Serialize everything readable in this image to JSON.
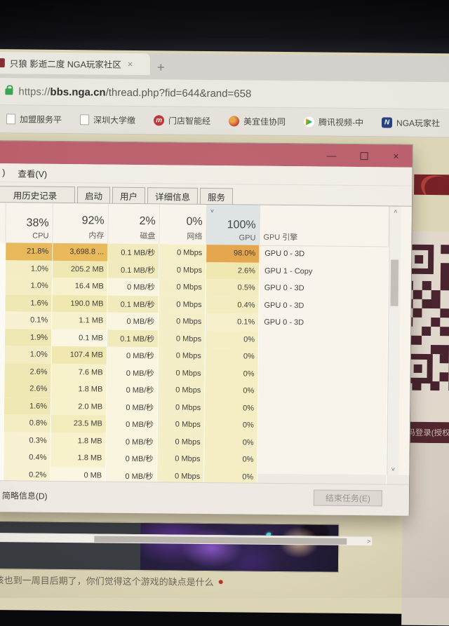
{
  "browser": {
    "tab": {
      "title": "只狼 影逝二度 NGA玩家社区",
      "close_glyph": "×",
      "new_tab_glyph": "+"
    },
    "url": {
      "scheme": "https://",
      "host": "bbs.nga.cn",
      "path": "/thread.php?fid=644&rand=658"
    },
    "bookmarks": [
      {
        "label": "加盟服务平",
        "icon": "page-icon"
      },
      {
        "label": "深圳大学缴",
        "icon": "page-icon"
      },
      {
        "label": "门店智能经",
        "icon": "m-red-icon",
        "icon_glyph": "m"
      },
      {
        "label": "美宜佳协同",
        "icon": "red-circle-icon"
      },
      {
        "label": "腾讯视频-中",
        "icon": "tencent-video-icon"
      },
      {
        "label": "NGA玩家社",
        "icon": "nga-icon",
        "icon_glyph": "N"
      }
    ]
  },
  "task_manager": {
    "window_controls": {
      "minimize": "—",
      "close": "×"
    },
    "menu": {
      "cut_item": ")",
      "view": "查看(V)"
    },
    "tabs": [
      "用历史记录",
      "启动",
      "用户",
      "详细信息",
      "服务"
    ],
    "columns": [
      {
        "percent": "38%",
        "label": "CPU"
      },
      {
        "percent": "92%",
        "label": "内存"
      },
      {
        "percent": "2%",
        "label": "磁盘"
      },
      {
        "percent": "0%",
        "label": "网络"
      },
      {
        "percent": "100%",
        "label": "GPU",
        "sorted": true,
        "sort_glyph": "˅"
      },
      {
        "percent": "",
        "label": "GPU 引擎"
      }
    ],
    "rows": [
      {
        "cpu": "21.8%",
        "mem": "3,698.8 ...",
        "disk": "0.1 MB/秒",
        "net": "0 Mbps",
        "gpu": "98.0%",
        "engine": "GPU 0 - 3D",
        "selected": true
      },
      {
        "cpu": "1.0%",
        "mem": "205.2 MB",
        "disk": "0.1 MB/秒",
        "net": "0 Mbps",
        "gpu": "2.6%",
        "engine": "GPU 1 - Copy"
      },
      {
        "cpu": "1.0%",
        "mem": "16.4 MB",
        "disk": "0 MB/秒",
        "net": "0 Mbps",
        "gpu": "0.5%",
        "engine": "GPU 0 - 3D"
      },
      {
        "cpu": "1.6%",
        "mem": "190.0 MB",
        "disk": "0.1 MB/秒",
        "net": "0 Mbps",
        "gpu": "0.4%",
        "engine": "GPU 0 - 3D"
      },
      {
        "cpu": "0.1%",
        "mem": "1.1 MB",
        "disk": "0 MB/秒",
        "net": "0 Mbps",
        "gpu": "0.1%",
        "engine": "GPU 0 - 3D"
      },
      {
        "cpu": "1.9%",
        "mem": "0.1 MB",
        "disk": "0.1 MB/秒",
        "net": "0 Mbps",
        "gpu": "0%",
        "engine": ""
      },
      {
        "cpu": "1.0%",
        "mem": "107.4 MB",
        "disk": "0 MB/秒",
        "net": "0 Mbps",
        "gpu": "0%",
        "engine": ""
      },
      {
        "cpu": "2.6%",
        "mem": "7.6 MB",
        "disk": "0 MB/秒",
        "net": "0 Mbps",
        "gpu": "0%",
        "engine": ""
      },
      {
        "cpu": "2.6%",
        "mem": "1.8 MB",
        "disk": "0 MB/秒",
        "net": "0 Mbps",
        "gpu": "0%",
        "engine": ""
      },
      {
        "cpu": "1.6%",
        "mem": "2.0 MB",
        "disk": "0 MB/秒",
        "net": "0 Mbps",
        "gpu": "0%",
        "engine": ""
      },
      {
        "cpu": "0.8%",
        "mem": "23.5 MB",
        "disk": "0 MB/秒",
        "net": "0 Mbps",
        "gpu": "0%",
        "engine": ""
      },
      {
        "cpu": "0.3%",
        "mem": "1.8 MB",
        "disk": "0 MB/秒",
        "net": "0 Mbps",
        "gpu": "0%",
        "engine": ""
      },
      {
        "cpu": "0.4%",
        "mem": "1.8 MB",
        "disk": "0 MB/秒",
        "net": "0 Mbps",
        "gpu": "0%",
        "engine": ""
      },
      {
        "cpu": "0.2%",
        "mem": "0 MB",
        "disk": "0 MB/秒",
        "net": "0 Mbps",
        "gpu": "0%",
        "engine": ""
      }
    ],
    "scrollbar_glyphs": {
      "up": "˄",
      "down": "˅",
      "right": "˃"
    },
    "status_bar": {
      "detail_toggle": "简略信息(D)",
      "end_task": "结束任务(E)"
    }
  },
  "nga_page": {
    "qr_caption": "扫码登录(授权",
    "thread_text": "该也到一周目后期了，你们觉得这个游戏的缺点是什么"
  },
  "colors": {
    "titlebar": "#c4596a",
    "page_cream": "#dcd5b4",
    "qr_dark": "#4a1f2e",
    "heat_orange": "#ecb84b",
    "heat_gpu_orange": "#eba23b",
    "heat_yellow": "#f0e9af",
    "scan_bar_bg": "#54232f",
    "accent_red": "#7d1b20"
  }
}
